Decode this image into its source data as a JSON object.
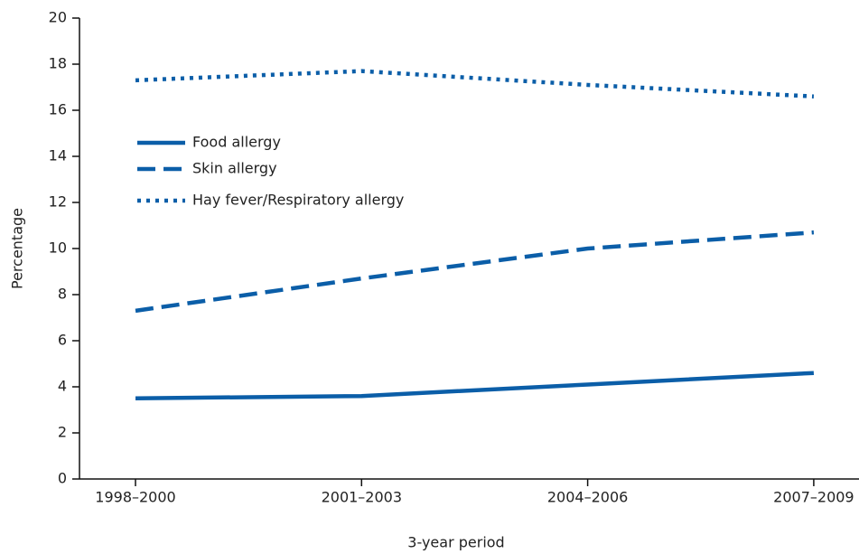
{
  "chart_data": {
    "type": "line",
    "categories": [
      "1998–2000",
      "2001–2003",
      "2004–2006",
      "2007–2009"
    ],
    "series": [
      {
        "name": "Food allergy",
        "color": "#0b5ea8",
        "dash": "solid",
        "values": [
          3.5,
          3.6,
          4.1,
          4.6
        ]
      },
      {
        "name": "Skin allergy",
        "color": "#0b5ea8",
        "dash": "dashed",
        "values": [
          7.3,
          8.7,
          10.0,
          10.7
        ]
      },
      {
        "name": "Hay fever/Respiratory allergy",
        "color": "#0b5ea8",
        "dash": "dotted",
        "values": [
          17.3,
          17.7,
          17.1,
          16.6
        ]
      }
    ],
    "ylim": [
      0,
      20
    ],
    "yticks": [
      0,
      2,
      4,
      6,
      8,
      10,
      12,
      14,
      16,
      18,
      20
    ],
    "x_label": "3-year period",
    "y_label": "Percentage",
    "legend": "upper-left",
    "grid": false
  }
}
